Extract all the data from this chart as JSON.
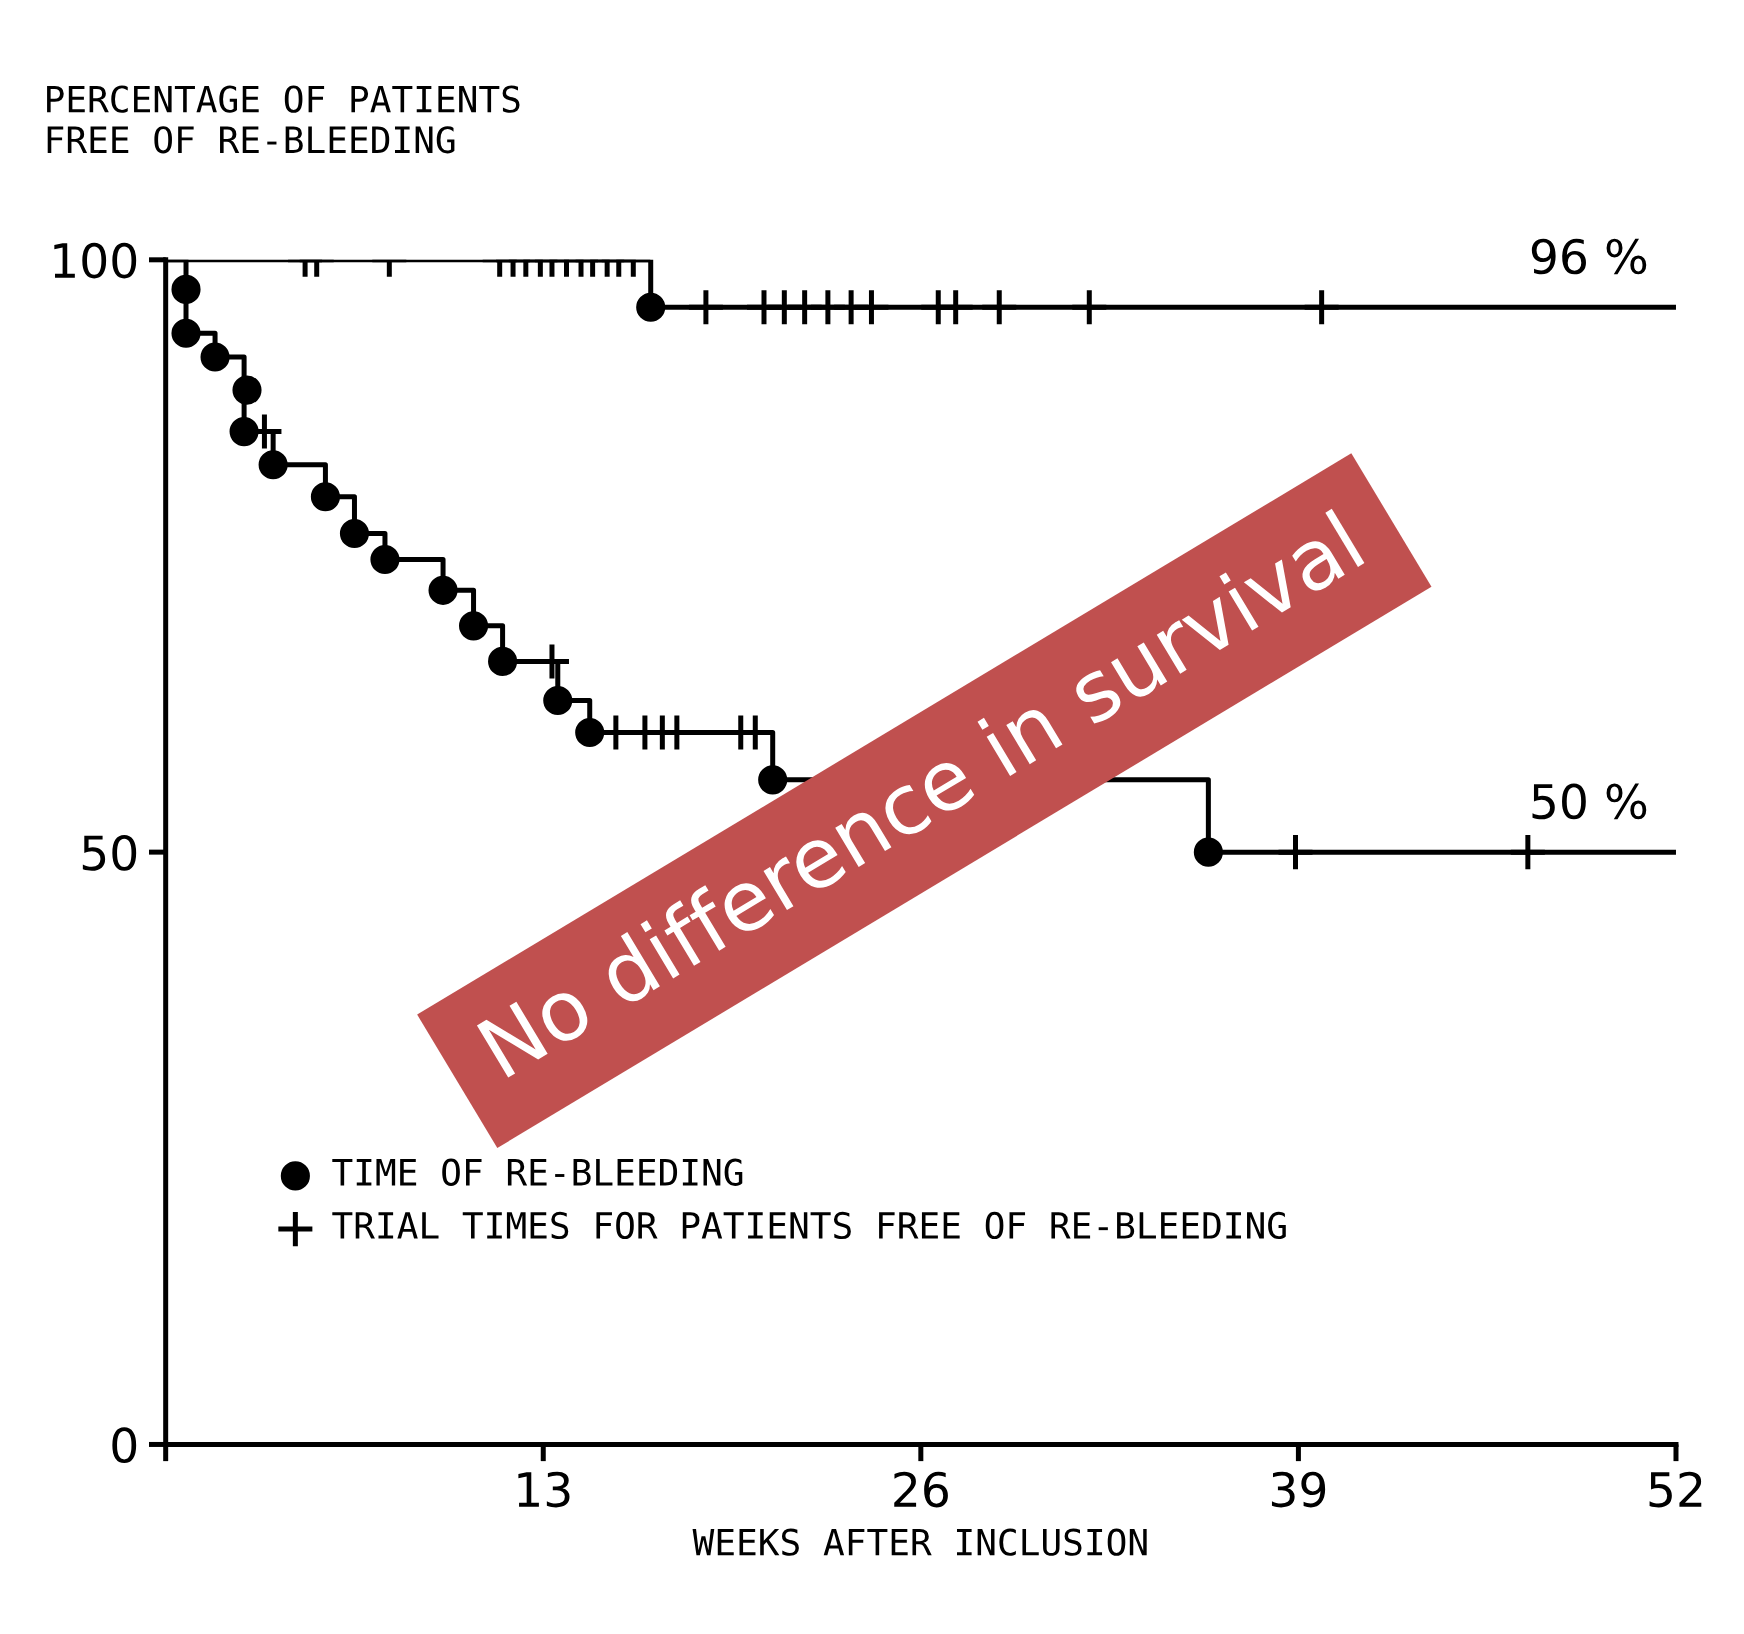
{
  "chart_data": {
    "type": "step",
    "ylabel": "PERCENTAGE OF PATIENTS\nFREE OF RE-BLEEDING",
    "xlabel": "WEEKS AFTER INCLUSION",
    "xlim": [
      0,
      52
    ],
    "xticks": [
      {
        "value": 0,
        "label": null
      },
      13,
      26,
      39,
      52
    ],
    "ylim": [
      0,
      100
    ],
    "yticks": [
      0,
      50,
      100
    ],
    "grid": false,
    "legend": "bottom left",
    "series": [
      {
        "color": "#000000",
        "marker": "none",
        "x": [
          0,
          16.7,
          52
        ],
        "values": [
          100,
          96,
          96
        ]
      },
      {
        "color": "#000000",
        "marker": "none",
        "x": [
          0,
          0.7,
          1.7,
          2.7,
          3.7,
          5.5,
          6.5,
          7.55,
          9.55,
          10.6,
          11.6,
          13.5,
          14.6,
          20.9,
          35.9,
          52
        ],
        "values": [
          100,
          93.8,
          91.8,
          85.5,
          82.7,
          80.0,
          76.9,
          74.7,
          72.1,
          69.1,
          66.1,
          62.8,
          60.1,
          56.1,
          50,
          50
        ]
      },
      {
        "type": "scatter",
        "name": "TIME OF RE-BLEEDING",
        "color": "#000000",
        "marker": "circle",
        "x": [
          0.7,
          0.7,
          1.7,
          2.8,
          2.7,
          3.7,
          5.5,
          6.5,
          7.55,
          9.55,
          10.6,
          11.6,
          13.5,
          14.6,
          20.9,
          35.9,
          16.7
        ],
        "values": [
          97.5,
          93.8,
          91.8,
          89.0,
          85.5,
          82.7,
          80.0,
          76.9,
          74.7,
          72.1,
          69.1,
          66.1,
          62.8,
          60.1,
          56.1,
          50,
          96
        ]
      },
      {
        "type": "scatter",
        "name": "TRIAL TIMES FOR PATIENTS FREE OF RE-BLEEDING",
        "color": "#000000",
        "marker": "cross",
        "x": [
          4.8,
          5.2,
          7.7,
          11.5,
          11.96,
          12.4,
          12.9,
          13.3,
          13.8,
          14.3,
          14.7,
          15.2,
          15.6,
          16.1,
          18.6,
          20.6,
          21.3,
          22.0,
          22.8,
          23.6,
          24.3,
          26.6,
          27.2,
          28.7,
          31.8,
          39.8,
          3.4,
          13.3,
          15.5,
          16.5,
          17.1,
          17.6,
          19.8,
          20.3,
          38.9,
          46.9
        ],
        "values": [
          100,
          100,
          100,
          100,
          100,
          100,
          100,
          100,
          100,
          100,
          100,
          100,
          100,
          100,
          96,
          96,
          96,
          96,
          96,
          96,
          96,
          96,
          96,
          96,
          96,
          96,
          85.5,
          66.1,
          60.1,
          60.1,
          60.1,
          60.1,
          60.1,
          60.1,
          50,
          50
        ]
      }
    ],
    "annotations": [
      {
        "text": "96 %",
        "x": 49,
        "y": 96
      },
      {
        "text": "50 %",
        "x": 49,
        "y": 50
      },
      "No difference in survival"
    ]
  }
}
